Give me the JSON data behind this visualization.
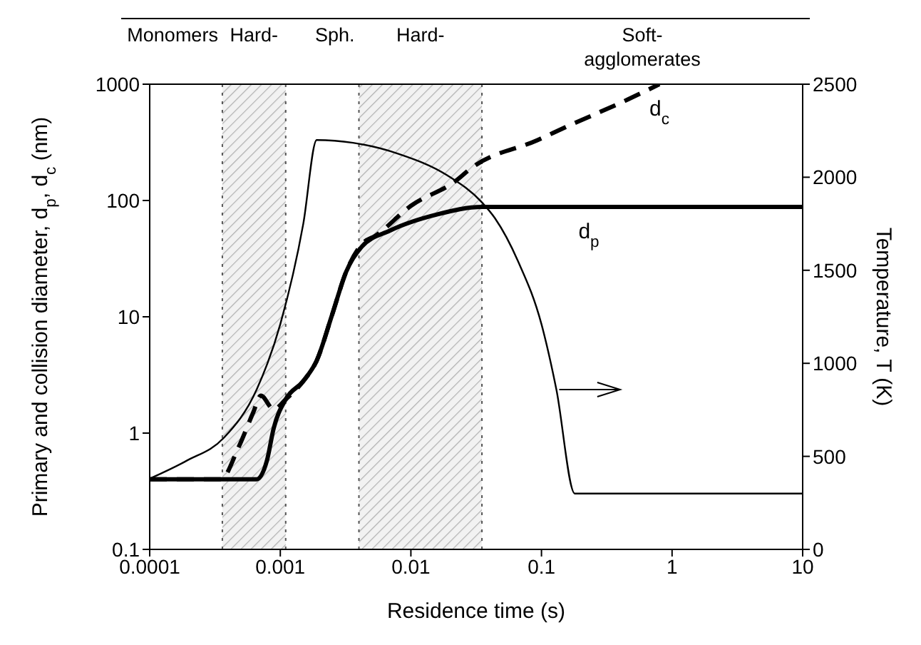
{
  "chart_data": {
    "type": "line",
    "xlabel": "Residence time (s)",
    "ylabel": "Primary and collision diameter, d$_{p}$, d$_{c}$ (nm)",
    "y2label": "Temperature, T (K)",
    "log": "xy",
    "xlim": [
      0.0001,
      10
    ],
    "xticks": [
      0.0001,
      0.001,
      0.01,
      0.1,
      1,
      10
    ],
    "ylim": [
      0.1,
      1000
    ],
    "yticks": [
      0.1,
      1,
      10,
      100,
      1000
    ],
    "y2lim": [
      0,
      2500
    ],
    "y2ticks": [
      0,
      500,
      1000,
      1500,
      2000,
      2500
    ],
    "grid": false,
    "legend": false,
    "marker": "none",
    "series": [
      {
        "name": "d$_{c}$",
        "color": "#000000",
        "line_style": "dashed",
        "x": [
          0.0001,
          0.00035,
          0.00048,
          0.00062,
          0.00071,
          0.00089,
          0.0011,
          0.0015,
          0.0019,
          0.0025,
          0.0032,
          0.0042,
          0.0054,
          0.01,
          0.022,
          0.029,
          0.093,
          0.155,
          0.46,
          0.8
        ],
        "values": [
          0.4,
          0.4,
          0.76,
          1.5,
          2.1,
          1.6,
          1.95,
          2.8,
          4.2,
          10.5,
          24.5,
          42,
          50,
          90,
          147,
          190,
          330,
          430,
          740,
          1000
        ]
      },
      {
        "name": "d$_{p}$",
        "color": "#000000",
        "line_style": "solid",
        "x": [
          0.0001,
          0.00066,
          0.00079,
          0.00089,
          0.0011,
          0.0015,
          0.0019,
          0.0025,
          0.0032,
          0.0042,
          0.0069,
          0.016,
          0.035,
          10
        ],
        "values": [
          0.4,
          0.4,
          0.58,
          1.1,
          1.95,
          2.8,
          4.2,
          10.5,
          24.5,
          40,
          55,
          76,
          88,
          88
        ]
      },
      {
        "color": "#000000",
        "line_style": "solid",
        "axis": "y2",
        "x": [
          0.0001,
          0.00019,
          0.00037,
          0.00066,
          0.001,
          0.0015,
          0.0019,
          0.0036,
          0.0081,
          0.019,
          0.035,
          0.044,
          0.066,
          0.1,
          0.13,
          0.18,
          10
        ],
        "values": [
          380,
          475,
          600,
          860,
          1210,
          1750,
          2200,
          2185,
          2125,
          2010,
          1865,
          1780,
          1550,
          1210,
          860,
          300,
          300
        ]
      }
    ],
    "bands": [
      {
        "axis": "x",
        "from": 0.00036,
        "to": 0.0011,
        "label": "Hard-",
        "color": "#b0b0b0"
      },
      {
        "axis": "x",
        "from": 0.004,
        "to": 0.035,
        "label": "Hard-",
        "color": "#b0b0b0"
      }
    ],
    "ref_lines": [
      {
        "axis": "x",
        "value": 0.00036,
        "color": "#555555",
        "line_style": "dotted"
      },
      {
        "axis": "x",
        "value": 0.0011,
        "color": "#555555",
        "line_style": "dotted"
      },
      {
        "axis": "x",
        "value": 0.004,
        "color": "#555555",
        "line_style": "dotted"
      },
      {
        "axis": "x",
        "value": 0.035,
        "color": "#555555",
        "line_style": "dotted"
      }
    ],
    "annotations": [
      "Monomers",
      "Sph.",
      "Soft-agglomerates"
    ]
  }
}
